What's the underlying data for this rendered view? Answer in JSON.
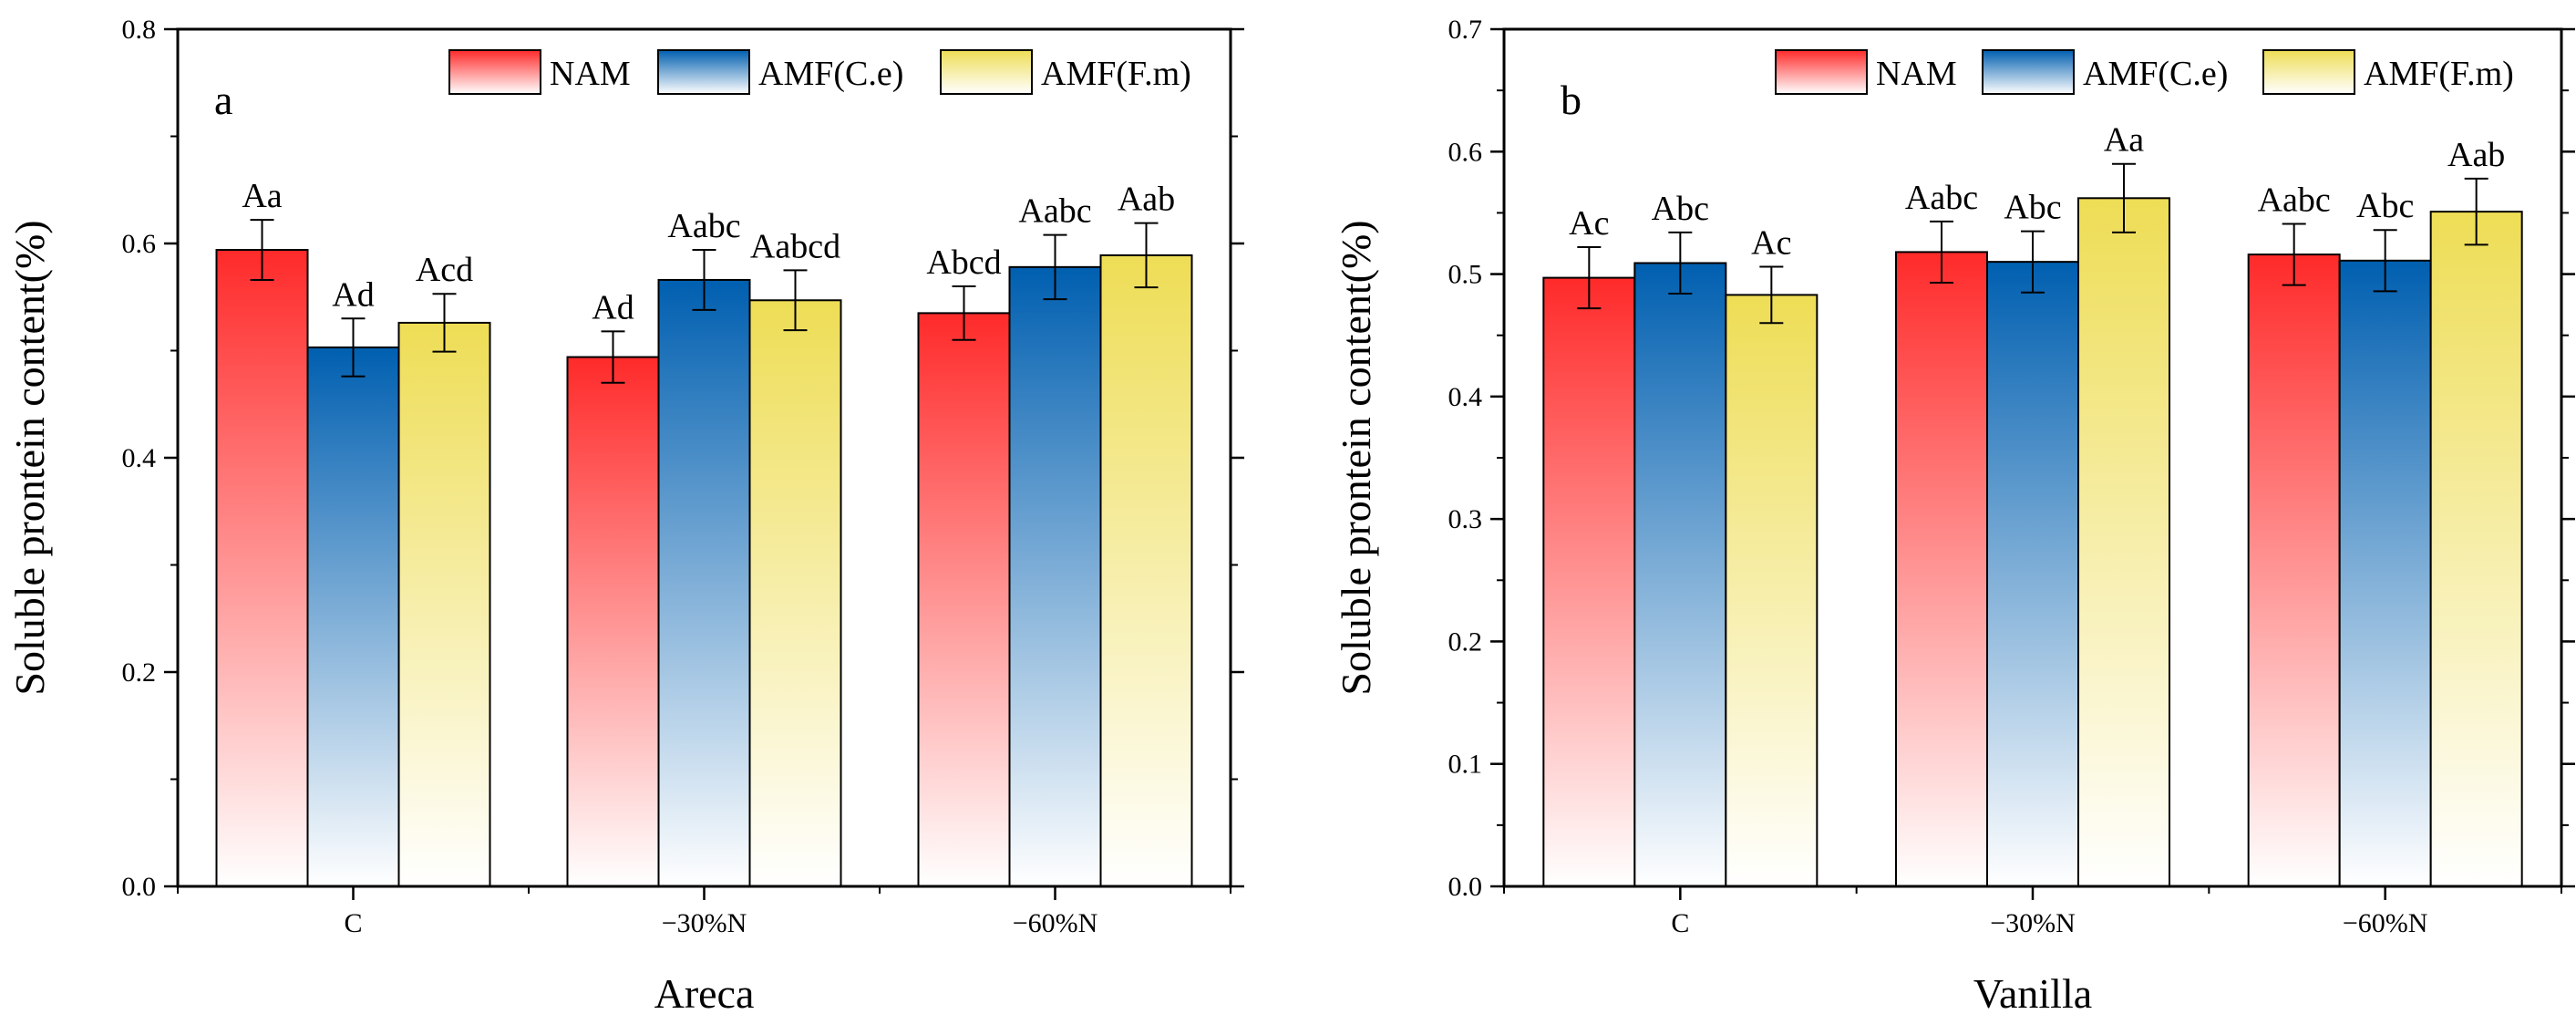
{
  "chart_data": [
    {
      "type": "bar",
      "panel": "a",
      "xlabel": "Areca",
      "ylabel": "Soluble prontein content(%)",
      "ylim": [
        0,
        0.8
      ],
      "yticks": [
        "0.0",
        "0.2",
        "0.4",
        "0.6",
        "0.8"
      ],
      "yminor_step": 0.1,
      "categories": [
        "C",
        "−30%N",
        "−60%N"
      ],
      "legend_position": "top-right",
      "series": [
        {
          "name": "NAM",
          "values": [
            0.594,
            0.494,
            0.535
          ],
          "errors": [
            0.028,
            0.024,
            0.025
          ],
          "labels": [
            "Aa",
            "Ad",
            "Abcd"
          ]
        },
        {
          "name": "AMF(C.e)",
          "values": [
            0.503,
            0.566,
            0.578
          ],
          "errors": [
            0.027,
            0.028,
            0.03
          ],
          "labels": [
            "Ad",
            "Aabc",
            "Aabc"
          ]
        },
        {
          "name": "AMF(F.m)",
          "values": [
            0.526,
            0.547,
            0.589
          ],
          "errors": [
            0.027,
            0.028,
            0.03
          ],
          "labels": [
            "Acd",
            "Aabcd",
            "Aab"
          ]
        }
      ]
    },
    {
      "type": "bar",
      "panel": "b",
      "xlabel": "Vanilla",
      "ylabel": "Soluble prontein content(%)",
      "ylim": [
        0,
        0.7
      ],
      "yticks": [
        "0.0",
        "0.1",
        "0.2",
        "0.3",
        "0.4",
        "0.5",
        "0.6",
        "0.7"
      ],
      "yminor_step": 0.05,
      "categories": [
        "C",
        "−30%N",
        "−60%N"
      ],
      "legend_position": "top-right",
      "series": [
        {
          "name": "NAM",
          "values": [
            0.497,
            0.518,
            0.516
          ],
          "errors": [
            0.025,
            0.025,
            0.025
          ],
          "labels": [
            "Ac",
            "Aabc",
            "Aabc"
          ]
        },
        {
          "name": "AMF(C.e)",
          "values": [
            0.509,
            0.51,
            0.511
          ],
          "errors": [
            0.025,
            0.025,
            0.025
          ],
          "labels": [
            "Abc",
            "Abc",
            "Abc"
          ]
        },
        {
          "name": "AMF(F.m)",
          "values": [
            0.483,
            0.562,
            0.551
          ],
          "errors": [
            0.023,
            0.028,
            0.027
          ],
          "labels": [
            "Ac",
            "Aa",
            "Aab"
          ]
        }
      ]
    }
  ],
  "colors": {
    "NAM": "#ff3030",
    "AMF(C.e)": "#0a64b4",
    "AMF(F.m)": "#f0e060"
  }
}
